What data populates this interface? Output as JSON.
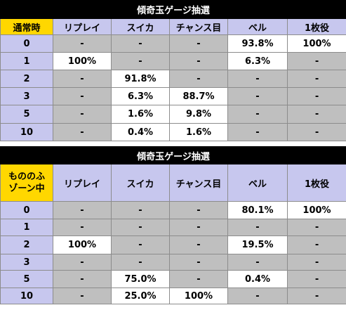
{
  "colors": {
    "title_bg": "#000000",
    "header_bg": "#c7c7ee",
    "corner_bg": "#ffd700",
    "blank_cell": "#bfbfbf",
    "value_cell": "#ffffff"
  },
  "tables": [
    {
      "title": "傾奇玉ゲージ抽選",
      "corner": "通常時",
      "columns": [
        "リプレイ",
        "スイカ",
        "チャンス目",
        "ベル",
        "1枚役"
      ],
      "rows": [
        {
          "label": "0",
          "cells": [
            "-",
            "-",
            "-",
            "93.8%",
            "100%"
          ]
        },
        {
          "label": "1",
          "cells": [
            "100%",
            "-",
            "-",
            "6.3%",
            "-"
          ]
        },
        {
          "label": "2",
          "cells": [
            "-",
            "91.8%",
            "-",
            "-",
            "-"
          ]
        },
        {
          "label": "3",
          "cells": [
            "-",
            "6.3%",
            "88.7%",
            "-",
            "-"
          ]
        },
        {
          "label": "5",
          "cells": [
            "-",
            "1.6%",
            "9.8%",
            "-",
            "-"
          ]
        },
        {
          "label": "10",
          "cells": [
            "-",
            "0.4%",
            "1.6%",
            "-",
            "-"
          ]
        }
      ]
    },
    {
      "title": "傾奇玉ゲージ抽選",
      "corner_line1": "もののふ",
      "corner_line2": "ゾーン中",
      "columns": [
        "リプレイ",
        "スイカ",
        "チャンス目",
        "ベル",
        "1枚役"
      ],
      "rows": [
        {
          "label": "0",
          "cells": [
            "-",
            "-",
            "-",
            "80.1%",
            "100%"
          ]
        },
        {
          "label": "1",
          "cells": [
            "-",
            "-",
            "-",
            "-",
            "-"
          ]
        },
        {
          "label": "2",
          "cells": [
            "100%",
            "-",
            "-",
            "19.5%",
            "-"
          ]
        },
        {
          "label": "3",
          "cells": [
            "-",
            "-",
            "-",
            "-",
            "-"
          ]
        },
        {
          "label": "5",
          "cells": [
            "-",
            "75.0%",
            "-",
            "0.4%",
            "-"
          ]
        },
        {
          "label": "10",
          "cells": [
            "-",
            "25.0%",
            "100%",
            "-",
            "-"
          ]
        }
      ]
    }
  ]
}
